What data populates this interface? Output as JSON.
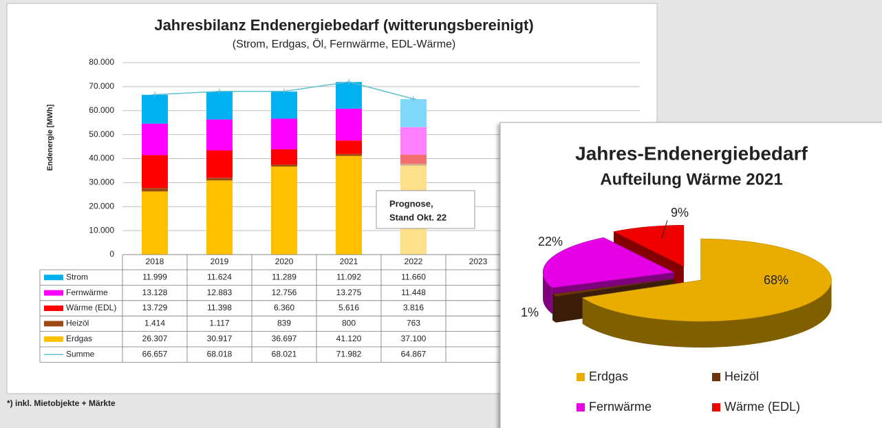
{
  "chart_data": [
    {
      "type": "bar",
      "stacked": true,
      "title": "Jahresbilanz Endenergiebedarf  (witterungsbereinigt)",
      "subtitle": "(Strom, Erdgas, Öl, Fernwärme, EDL-Wärme)",
      "y_label": "Endenergie [MWh]",
      "categories": [
        "2018",
        "2019",
        "2020",
        "2021",
        "2022",
        "2023"
      ],
      "ylim": [
        0,
        80000
      ],
      "yticks": [
        0,
        {
          "value": 10000,
          "label": "10.000"
        },
        {
          "value": 20000,
          "label": "20.000"
        },
        {
          "value": 30000,
          "label": "30.000"
        },
        {
          "value": 40000,
          "label": "40.000"
        },
        {
          "value": 50000,
          "label": "50.000"
        },
        {
          "value": 60000,
          "label": "60.000"
        },
        {
          "value": 70000,
          "label": "70.000"
        },
        {
          "value": 80000,
          "label": "80.000"
        }
      ],
      "grid": true,
      "series": [
        {
          "name": "Strom",
          "colors": [
            "#00b0f0",
            "#00b0f0",
            "#00b0f0",
            "#00b0f0",
            "#80d8f8",
            "#00b0f0"
          ],
          "values": [
            11999,
            11624,
            11289,
            11092,
            11660,
            null
          ],
          "value_labels": [
            "11.999",
            "11.624",
            "11.289",
            "11.092",
            "11.660",
            null
          ]
        },
        {
          "name": "Fernwärme",
          "colors": [
            "#ff00ff",
            "#ff00ff",
            "#ff00ff",
            "#ff00ff",
            "#ff80ff",
            "#ff00ff"
          ],
          "values": [
            13128,
            12883,
            12756,
            13275,
            11448,
            null
          ],
          "value_labels": [
            "13.128",
            "12.883",
            "12.756",
            "13.275",
            "11.448",
            null
          ]
        },
        {
          "name": "Wärme (EDL)",
          "colors": [
            "#ff0000",
            "#ff0000",
            "#ff0000",
            "#ff0000",
            "#f47070",
            "#ff0000"
          ],
          "values": [
            13729,
            11398,
            6360,
            5616,
            3816,
            null
          ],
          "value_labels": [
            "13.729",
            "11.398",
            "6.360",
            "5.616",
            "3.816",
            null
          ]
        },
        {
          "name": "Heizöl",
          "colors": [
            "#9c4a12",
            "#9c4a12",
            "#9c4a12",
            "#9c4a12",
            "#d1a98d",
            "#9c4a12"
          ],
          "values": [
            1414,
            1117,
            839,
            800,
            763,
            null
          ],
          "value_labels": [
            "1.414",
            "1.117",
            "839",
            "800",
            "763",
            null
          ]
        },
        {
          "name": "Erdgas",
          "colors": [
            "#ffc000",
            "#ffc000",
            "#ffc000",
            "#ffc000",
            "#ffe08a",
            "#ffc000"
          ],
          "values": [
            26307,
            30917,
            36697,
            41120,
            37100,
            null
          ],
          "value_labels": [
            "26.307",
            "30.917",
            "36.697",
            "41.120",
            "37.100",
            null
          ]
        },
        {
          "name": "Summe",
          "type": "line",
          "color": "#5fbfcf",
          "values": [
            66657,
            68018,
            68021,
            71982,
            64867,
            null
          ],
          "value_labels": [
            "66.657",
            "68.018",
            "68.021",
            "71.982",
            "64.867",
            null
          ]
        }
      ],
      "annotation": [
        "Prognose,",
        "Stand Okt. 22"
      ],
      "footnote": "*) inkl. Mietobjekte + Märkte"
    },
    {
      "type": "pie",
      "3d": true,
      "title": "Jahres-Endenergiebedarf",
      "subtitle": "Aufteilung Wärme 2021",
      "categories": [
        "Erdgas",
        "Heizöl",
        "Fernwärme",
        "Wärme (EDL)"
      ],
      "values": [
        68,
        1,
        22,
        9
      ],
      "value_labels": [
        "68%",
        "1%",
        "22%",
        "9%"
      ],
      "colors": [
        "#e8ad00",
        "#6b3510",
        "#e600e6",
        "#ee0000"
      ]
    }
  ]
}
